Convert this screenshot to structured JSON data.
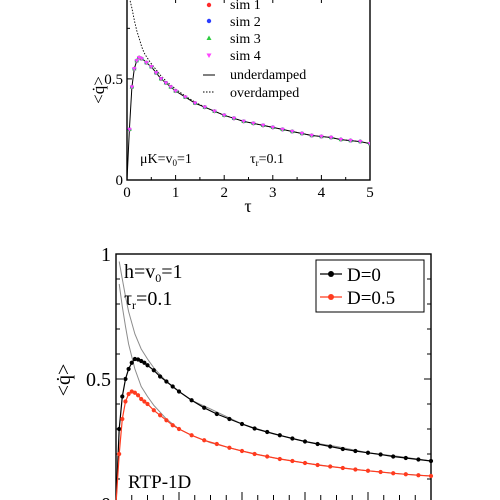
{
  "chart_data": [
    {
      "type": "scatter",
      "xlabel": "τ",
      "ylabel": "<q̇>",
      "xlim": [
        0,
        5
      ],
      "ylim": [
        0,
        0.9
      ],
      "x_ticks": [
        "0",
        "1",
        "2",
        "3",
        "4",
        "5"
      ],
      "y_ticks": [
        "0",
        "0.5"
      ],
      "annotations": [
        "μK=v₀=1",
        "τr=0.1"
      ],
      "legend_position": "top-right",
      "series": [
        {
          "name": "sim 1",
          "color": "#ff2a2a",
          "marker": "circle",
          "x": [
            0.05,
            0.1,
            0.15,
            0.2,
            0.25,
            0.3,
            0.4,
            0.5,
            0.6,
            0.7,
            0.8,
            0.9,
            1.0,
            1.2,
            1.4,
            1.6,
            1.8,
            2.0,
            2.2,
            2.4,
            2.6,
            2.8,
            3.0,
            3.2,
            3.4,
            3.6,
            3.8,
            4.0,
            4.2,
            4.4,
            4.6,
            4.8,
            5.0
          ],
          "y": [
            0.25,
            0.46,
            0.55,
            0.59,
            0.605,
            0.6,
            0.58,
            0.56,
            0.53,
            0.5,
            0.48,
            0.46,
            0.44,
            0.41,
            0.38,
            0.36,
            0.34,
            0.32,
            0.305,
            0.29,
            0.28,
            0.27,
            0.26,
            0.25,
            0.24,
            0.23,
            0.22,
            0.215,
            0.21,
            0.2,
            0.195,
            0.19,
            0.18
          ]
        },
        {
          "name": "sim 2",
          "color": "#2a3cff",
          "marker": "circle",
          "x": [
            0.05,
            0.1,
            0.15,
            0.2,
            0.25,
            0.3,
            0.4,
            0.5,
            0.6,
            0.7,
            0.8,
            0.9,
            1.0,
            1.2,
            1.4,
            1.6,
            1.8,
            2.0,
            2.2,
            2.4,
            2.6,
            2.8,
            3.0,
            3.2,
            3.4,
            3.6,
            3.8,
            4.0,
            4.2,
            4.4,
            4.6,
            4.8,
            5.0
          ],
          "y": [
            0.25,
            0.46,
            0.55,
            0.59,
            0.605,
            0.6,
            0.58,
            0.56,
            0.53,
            0.5,
            0.48,
            0.46,
            0.44,
            0.41,
            0.38,
            0.36,
            0.34,
            0.32,
            0.305,
            0.29,
            0.28,
            0.27,
            0.26,
            0.25,
            0.24,
            0.23,
            0.22,
            0.215,
            0.21,
            0.2,
            0.195,
            0.19,
            0.18
          ]
        },
        {
          "name": "sim 3",
          "color": "#2ecc40",
          "marker": "triangle",
          "x": [
            0.05,
            0.1,
            0.15,
            0.2,
            0.25,
            0.3,
            0.4,
            0.5,
            0.6,
            0.7,
            0.8,
            0.9,
            1.0,
            1.2,
            1.4,
            1.6,
            1.8,
            2.0,
            2.2,
            2.4,
            2.6,
            2.8,
            3.0,
            3.2,
            3.4,
            3.6,
            3.8,
            4.0,
            4.2,
            4.4,
            4.6,
            4.8,
            5.0
          ],
          "y": [
            0.25,
            0.46,
            0.55,
            0.59,
            0.605,
            0.6,
            0.58,
            0.56,
            0.53,
            0.5,
            0.48,
            0.46,
            0.44,
            0.41,
            0.38,
            0.36,
            0.34,
            0.32,
            0.305,
            0.29,
            0.28,
            0.27,
            0.26,
            0.25,
            0.24,
            0.23,
            0.22,
            0.215,
            0.21,
            0.2,
            0.195,
            0.19,
            0.18
          ]
        },
        {
          "name": "sim 4",
          "color": "#ff44ff",
          "marker": "triangle-down",
          "x": [
            0.05,
            0.1,
            0.15,
            0.2,
            0.25,
            0.3,
            0.4,
            0.5,
            0.6,
            0.7,
            0.8,
            0.9,
            1.0,
            1.2,
            1.4,
            1.6,
            1.8,
            2.0,
            2.2,
            2.4,
            2.6,
            2.8,
            3.0,
            3.2,
            3.4,
            3.6,
            3.8,
            4.0,
            4.2,
            4.4,
            4.6,
            4.8,
            5.0
          ],
          "y": [
            0.25,
            0.46,
            0.55,
            0.59,
            0.605,
            0.6,
            0.58,
            0.56,
            0.53,
            0.5,
            0.48,
            0.46,
            0.44,
            0.41,
            0.38,
            0.36,
            0.34,
            0.32,
            0.305,
            0.29,
            0.28,
            0.27,
            0.26,
            0.25,
            0.24,
            0.23,
            0.22,
            0.215,
            0.21,
            0.2,
            0.195,
            0.19,
            0.18
          ]
        },
        {
          "name": "underdamped",
          "color": "#000000",
          "style": "solid",
          "x": [
            0,
            0.05,
            0.1,
            0.15,
            0.2,
            0.25,
            0.3,
            0.35,
            0.4,
            0.5,
            0.6,
            0.7,
            0.8,
            0.9,
            1.0,
            1.2,
            1.4,
            1.6,
            1.8,
            2.0,
            2.2,
            2.4,
            2.6,
            2.8,
            3.0,
            3.2,
            3.4,
            3.6,
            3.8,
            4.0,
            4.2,
            4.4,
            4.6,
            4.8,
            5.0
          ],
          "y": [
            0,
            0.25,
            0.46,
            0.55,
            0.59,
            0.605,
            0.6,
            0.592,
            0.58,
            0.56,
            0.53,
            0.5,
            0.48,
            0.46,
            0.44,
            0.41,
            0.38,
            0.36,
            0.34,
            0.32,
            0.305,
            0.29,
            0.28,
            0.27,
            0.26,
            0.25,
            0.24,
            0.23,
            0.22,
            0.215,
            0.21,
            0.2,
            0.195,
            0.19,
            0.18
          ]
        },
        {
          "name": "overdamped",
          "color": "#000000",
          "style": "dotted",
          "x": [
            0.05,
            0.1,
            0.15,
            0.2,
            0.25,
            0.3,
            0.35,
            0.4,
            0.5,
            0.6,
            0.7,
            0.8,
            0.9,
            1.0,
            1.2,
            1.4,
            1.6,
            1.8,
            2.0,
            2.2,
            2.4,
            2.6,
            2.8,
            3.0,
            3.2,
            3.4,
            3.6,
            3.8,
            4.0,
            4.2,
            4.4,
            4.6,
            4.8,
            5.0
          ],
          "y": [
            0.9,
            0.85,
            0.79,
            0.74,
            0.7,
            0.66,
            0.63,
            0.61,
            0.575,
            0.545,
            0.515,
            0.49,
            0.47,
            0.45,
            0.415,
            0.385,
            0.36,
            0.34,
            0.32,
            0.305,
            0.29,
            0.28,
            0.27,
            0.26,
            0.25,
            0.24,
            0.23,
            0.22,
            0.215,
            0.21,
            0.2,
            0.195,
            0.19,
            0.18
          ]
        }
      ]
    },
    {
      "type": "line",
      "ylabel": "<q̇>",
      "xlim": [
        0,
        5
      ],
      "ylim": [
        0,
        1
      ],
      "y_ticks": [
        "0",
        "0.5",
        "1"
      ],
      "annotations": [
        "h=v₀=1",
        "τr=0.1",
        "RTP-1D"
      ],
      "legend_position": "top-right",
      "series": [
        {
          "name": "D=0",
          "color": "#000000",
          "marker": "circle",
          "x": [
            0,
            0.05,
            0.1,
            0.15,
            0.2,
            0.25,
            0.3,
            0.35,
            0.4,
            0.45,
            0.5,
            0.6,
            0.7,
            0.8,
            0.9,
            1.0,
            1.2,
            1.4,
            1.6,
            1.8,
            2.0,
            2.2,
            2.4,
            2.6,
            2.8,
            3.0,
            3.2,
            3.4,
            3.6,
            3.8,
            4.0,
            4.2,
            4.4,
            4.6,
            4.8,
            5.0
          ],
          "y": [
            0,
            0.3,
            0.43,
            0.5,
            0.54,
            0.565,
            0.58,
            0.578,
            0.572,
            0.565,
            0.555,
            0.535,
            0.51,
            0.49,
            0.47,
            0.45,
            0.415,
            0.385,
            0.36,
            0.34,
            0.32,
            0.302,
            0.288,
            0.275,
            0.262,
            0.25,
            0.24,
            0.23,
            0.22,
            0.212,
            0.205,
            0.198,
            0.19,
            0.184,
            0.178,
            0.172
          ]
        },
        {
          "name": "D=0.5",
          "color": "#ff3b1f",
          "marker": "circle",
          "x": [
            0,
            0.05,
            0.1,
            0.15,
            0.2,
            0.25,
            0.3,
            0.35,
            0.4,
            0.45,
            0.5,
            0.6,
            0.7,
            0.8,
            0.9,
            1.0,
            1.2,
            1.4,
            1.6,
            1.8,
            2.0,
            2.2,
            2.4,
            2.6,
            2.8,
            3.0,
            3.2,
            3.4,
            3.6,
            3.8,
            4.0,
            4.2,
            4.4,
            4.6,
            4.8,
            5.0
          ],
          "y": [
            0,
            0.2,
            0.34,
            0.41,
            0.44,
            0.45,
            0.445,
            0.435,
            0.42,
            0.41,
            0.4,
            0.375,
            0.355,
            0.335,
            0.315,
            0.3,
            0.275,
            0.255,
            0.24,
            0.225,
            0.212,
            0.2,
            0.19,
            0.18,
            0.172,
            0.164,
            0.156,
            0.15,
            0.144,
            0.138,
            0.133,
            0.128,
            0.123,
            0.119,
            0.115,
            0.112
          ]
        },
        {
          "name": "",
          "color": "#8c8c8c",
          "style": "solid",
          "x": [
            0.05,
            0.1,
            0.15,
            0.2,
            0.3,
            0.4,
            0.5,
            0.6,
            0.8,
            1.0,
            1.2,
            1.5,
            2.0,
            2.5,
            3.0,
            3.5,
            4.0,
            4.5,
            5.0
          ],
          "y": [
            0.97,
            0.9,
            0.83,
            0.77,
            0.68,
            0.62,
            0.58,
            0.545,
            0.49,
            0.45,
            0.415,
            0.38,
            0.32,
            0.28,
            0.25,
            0.23,
            0.205,
            0.19,
            0.172
          ]
        },
        {
          "name": "",
          "color": "#8c8c8c",
          "style": "solid",
          "x": [
            0.05,
            0.1,
            0.15,
            0.2,
            0.3,
            0.4,
            0.5,
            0.6,
            0.8,
            1.0,
            1.2,
            1.5,
            2.0,
            2.5,
            3.0,
            3.5,
            4.0,
            4.5,
            5.0
          ],
          "y": [
            0.88,
            0.79,
            0.71,
            0.64,
            0.54,
            0.47,
            0.43,
            0.395,
            0.34,
            0.3,
            0.275,
            0.245,
            0.212,
            0.185,
            0.164,
            0.147,
            0.133,
            0.121,
            0.112
          ]
        }
      ]
    }
  ]
}
